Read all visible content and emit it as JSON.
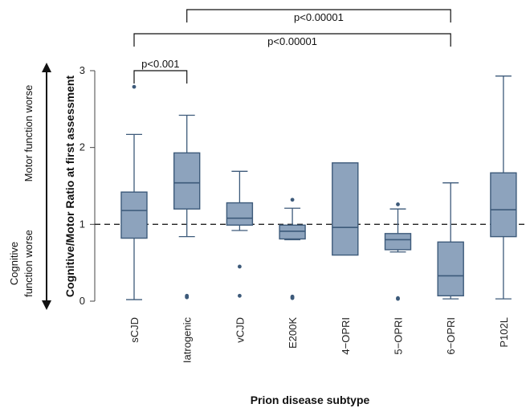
{
  "chart_data": {
    "type": "box",
    "xlabel": "Prion disease subtype",
    "ylabel": "Cognitive/Motor Ratio at first assessment",
    "ylim": [
      0,
      3
    ],
    "yticks": [
      0,
      1,
      2,
      3
    ],
    "reference_line": {
      "y": 1,
      "style": "dashed"
    },
    "annotations": {
      "top_label": "Motor function worse",
      "bottom_label_line1": "Cognitive",
      "bottom_label_line2": "function worse"
    },
    "box_color": "#8da3bd",
    "line_color": "#3d5a7a",
    "categories": [
      "sCJD",
      "Iatrogenic",
      "vCJD",
      "E200K",
      "4−OPRI",
      "5−OPRI",
      "6−OPRI",
      "P102L"
    ],
    "boxes": [
      {
        "whisker_low": 0.02,
        "q1": 0.82,
        "median": 1.18,
        "q3": 1.42,
        "whisker_high": 2.17,
        "outliers": [
          2.79
        ]
      },
      {
        "whisker_low": 0.84,
        "q1": 1.2,
        "median": 1.54,
        "q3": 1.93,
        "whisker_high": 2.42,
        "outliers": [
          0.05,
          0.06,
          0.07
        ]
      },
      {
        "whisker_low": 0.92,
        "q1": 0.99,
        "median": 1.08,
        "q3": 1.28,
        "whisker_high": 1.69,
        "outliers": [
          0.45,
          0.07
        ]
      },
      {
        "whisker_low": 0.8,
        "q1": 0.81,
        "median": 0.91,
        "q3": 0.99,
        "whisker_high": 1.21,
        "outliers": [
          1.32,
          0.04,
          0.05,
          0.06
        ]
      },
      {
        "whisker_low": 0.6,
        "q1": 0.6,
        "median": 0.96,
        "q3": 1.8,
        "whisker_high": 1.8,
        "outliers": []
      },
      {
        "whisker_low": 0.64,
        "q1": 0.67,
        "median": 0.8,
        "q3": 0.88,
        "whisker_high": 1.2,
        "outliers": [
          1.26,
          0.03,
          0.04
        ]
      },
      {
        "whisker_low": 0.03,
        "q1": 0.07,
        "median": 0.33,
        "q3": 0.77,
        "whisker_high": 1.54,
        "outliers": []
      },
      {
        "whisker_low": 0.03,
        "q1": 0.84,
        "median": 1.19,
        "q3": 1.67,
        "whisker_high": 2.93,
        "outliers": []
      }
    ],
    "significance": [
      {
        "from": 0,
        "to": 1,
        "label": "p<0.001"
      },
      {
        "from": 0,
        "to": 6,
        "label": "p<0.00001"
      },
      {
        "from": 1,
        "to": 6,
        "label": "p<0.00001"
      }
    ]
  }
}
